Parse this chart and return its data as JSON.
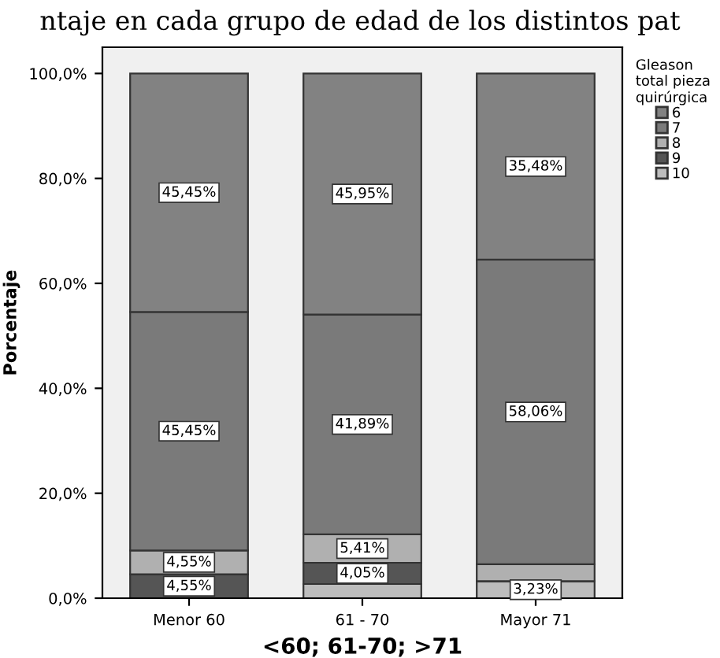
{
  "chart_data": {
    "type": "bar",
    "stacked": true,
    "title": "ntaje en cada grupo de edad de los distintos pat",
    "xlabel": "<60; 61-70; >71",
    "ylabel": "Porcentaje",
    "legend_title": "Gleason\ntotal pieza\nquirúrgica",
    "legend": "right",
    "grid": false,
    "categories": [
      "Menor 60",
      "61 - 70",
      "Mayor 71"
    ],
    "series": [
      {
        "name": "10",
        "color": "#bdbdbd",
        "values": [
          0,
          2.7,
          3.23
        ],
        "value_labels": [
          null,
          null,
          "3,23%"
        ]
      },
      {
        "name": "9",
        "color": "#555555",
        "values": [
          4.55,
          4.05,
          0
        ],
        "value_labels": [
          "4,55%",
          "4,05%",
          null
        ]
      },
      {
        "name": "8",
        "color": "#b0b0b0",
        "values": [
          4.55,
          5.41,
          3.23
        ],
        "value_labels": [
          "4,55%",
          "5,41%",
          null
        ]
      },
      {
        "name": "7",
        "color": "#7a7a7a",
        "values": [
          45.45,
          41.89,
          58.06
        ],
        "value_labels": [
          "45,45%",
          "41,89%",
          "58,06%"
        ]
      },
      {
        "name": "6",
        "color": "#828282",
        "values": [
          45.45,
          45.95,
          35.48
        ],
        "value_labels": [
          "45,45%",
          "45,95%",
          "35,48%"
        ]
      }
    ],
    "ylim": [
      0,
      105
    ],
    "yticks": [
      {
        "value": 0,
        "label": "0,0%"
      },
      {
        "value": 20,
        "label": "20,0%"
      },
      {
        "value": 40,
        "label": "40,0%"
      },
      {
        "value": 60,
        "label": "60,0%"
      },
      {
        "value": 80,
        "label": "80,0%"
      },
      {
        "value": 100,
        "label": "100,0%"
      }
    ]
  }
}
